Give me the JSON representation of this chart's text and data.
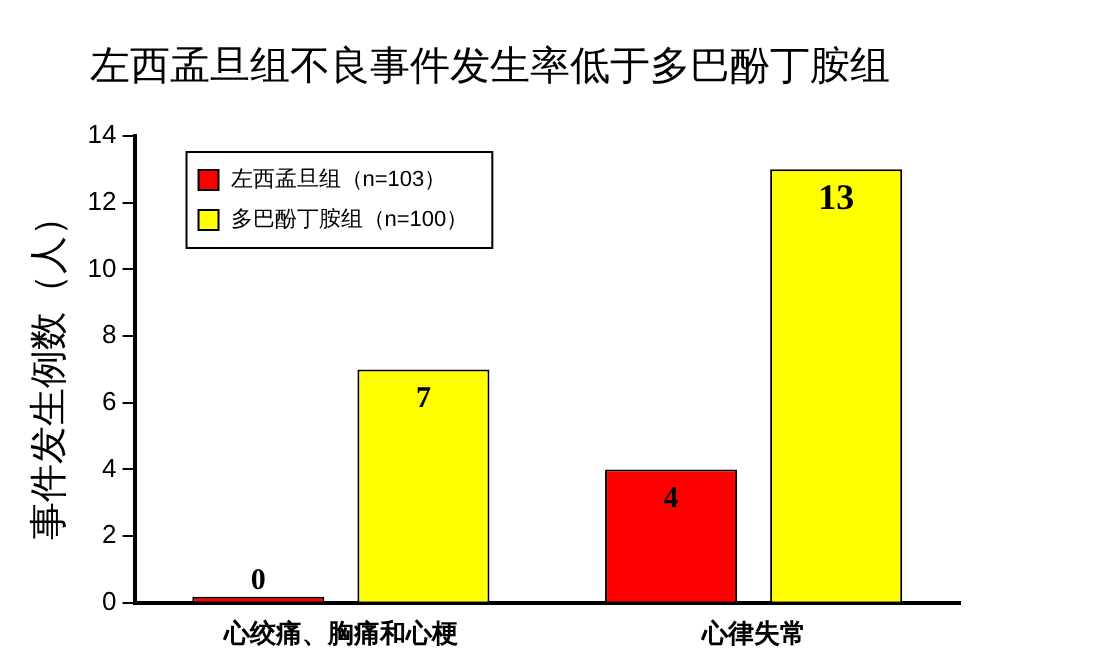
{
  "chart_data": {
    "type": "bar",
    "title": "左西孟旦组不良事件发生率低于多巴酚丁胺组",
    "ylabel": "事件发生例数（人）",
    "categories": [
      "心绞痛、胸痛和心梗",
      "心律失常"
    ],
    "series": [
      {
        "name": "左西孟旦组（n=103）",
        "color": "#ff0000",
        "values": [
          0,
          4
        ]
      },
      {
        "name": "多巴酚丁胺组（n=100）",
        "color": "#ffff00",
        "values": [
          7,
          13
        ]
      }
    ],
    "ylim": [
      0,
      14
    ],
    "yticks": [
      0,
      2,
      4,
      6,
      8,
      10,
      12,
      14
    ],
    "grid": false,
    "legend": "top left",
    "data_labels": true
  }
}
